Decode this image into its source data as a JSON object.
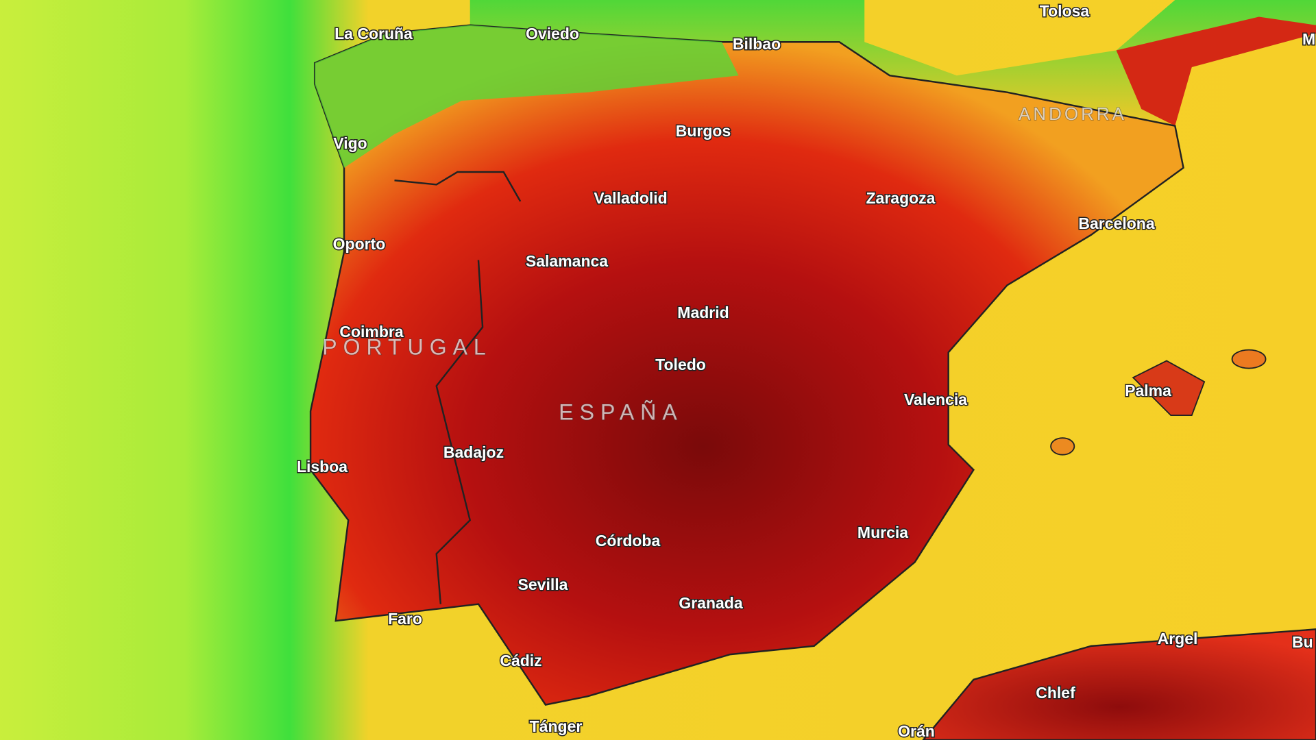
{
  "cities": [
    "La Coruña",
    "Oviedo",
    "Bilbao",
    "Tolosa",
    "M",
    "Burgos",
    "Vigo",
    "Valladolid",
    "Zaragoza",
    "Barcelona",
    "Oporto",
    "Salamanca",
    "Madrid",
    "Coimbra",
    "Toledo",
    "Valencia",
    "Palma",
    "Badajoz",
    "Lisboa",
    "Córdoba",
    "Murcia",
    "Sevilla",
    "Granada",
    "Faro",
    "Argel",
    "Bu",
    "Cádiz",
    "Chlef",
    "Tánger",
    "Orán"
  ],
  "countries": [
    "PORTUGAL",
    "ESPAÑA",
    "ANDORRA"
  ]
}
